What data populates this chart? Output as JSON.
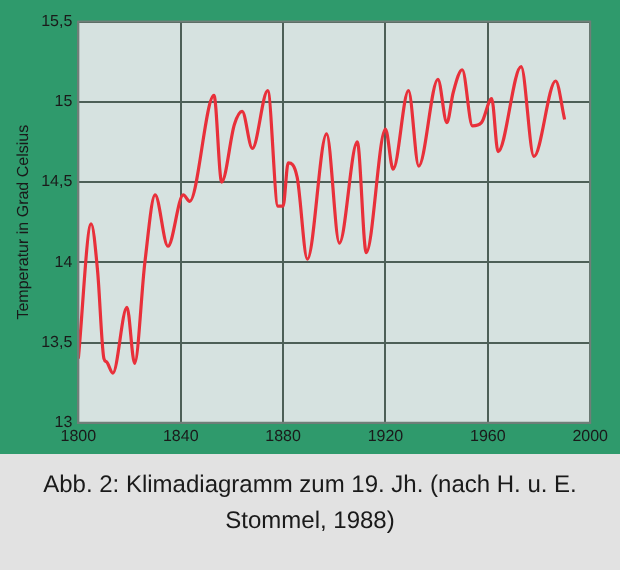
{
  "chart_data": {
    "type": "line",
    "ylabel": "Temperatur in Grad Celsius",
    "annotations": [
      "Abb. 2: Klimadiagramm zum 19. Jh. (nach H. u. E. Stommel, 1988)"
    ],
    "series": [
      {
        "color": "#e8303a",
        "x": [
          1800,
          1805,
          1807.5,
          1810,
          1811,
          1813.5,
          1819,
          1822,
          1826,
          1830,
          1835,
          1841,
          1843.5,
          1853,
          1856,
          1861,
          1864,
          1868,
          1874,
          1878,
          1880,
          1882,
          1885.5,
          1889.5,
          1897,
          1902,
          1909,
          1912.5,
          1920,
          1923,
          1929,
          1933,
          1940.5,
          1944,
          1946.5,
          1950,
          1954,
          1957.5,
          1961.5,
          1964,
          1973,
          1978,
          1986.5,
          1990
        ],
        "values": [
          13.4,
          14.24,
          13.95,
          13.4,
          13.38,
          13.31,
          13.72,
          13.37,
          14.0,
          14.42,
          14.1,
          14.42,
          14.38,
          15.04,
          14.5,
          14.86,
          14.94,
          14.71,
          15.07,
          14.35,
          14.35,
          14.62,
          14.53,
          14.02,
          14.8,
          14.12,
          14.75,
          14.06,
          14.83,
          14.58,
          15.07,
          14.6,
          15.14,
          14.87,
          15.06,
          15.2,
          14.85,
          14.87,
          15.02,
          14.69,
          15.22,
          14.66,
          15.13,
          14.89
        ]
      }
    ],
    "xlim": [
      1800,
      2000
    ],
    "xticks": [
      1800,
      1840,
      1880,
      1920,
      1960,
      2000
    ],
    "ylim": [
      13,
      15.5
    ],
    "yticks": [
      13,
      {
        "value": 13.5,
        "label": "13,5"
      },
      14,
      {
        "value": 14.5,
        "label": "14,5"
      },
      15,
      {
        "value": 15.5,
        "label": "15,5"
      }
    ],
    "grid": true,
    "marker": "none",
    "line_style": "solid",
    "legend": false
  }
}
